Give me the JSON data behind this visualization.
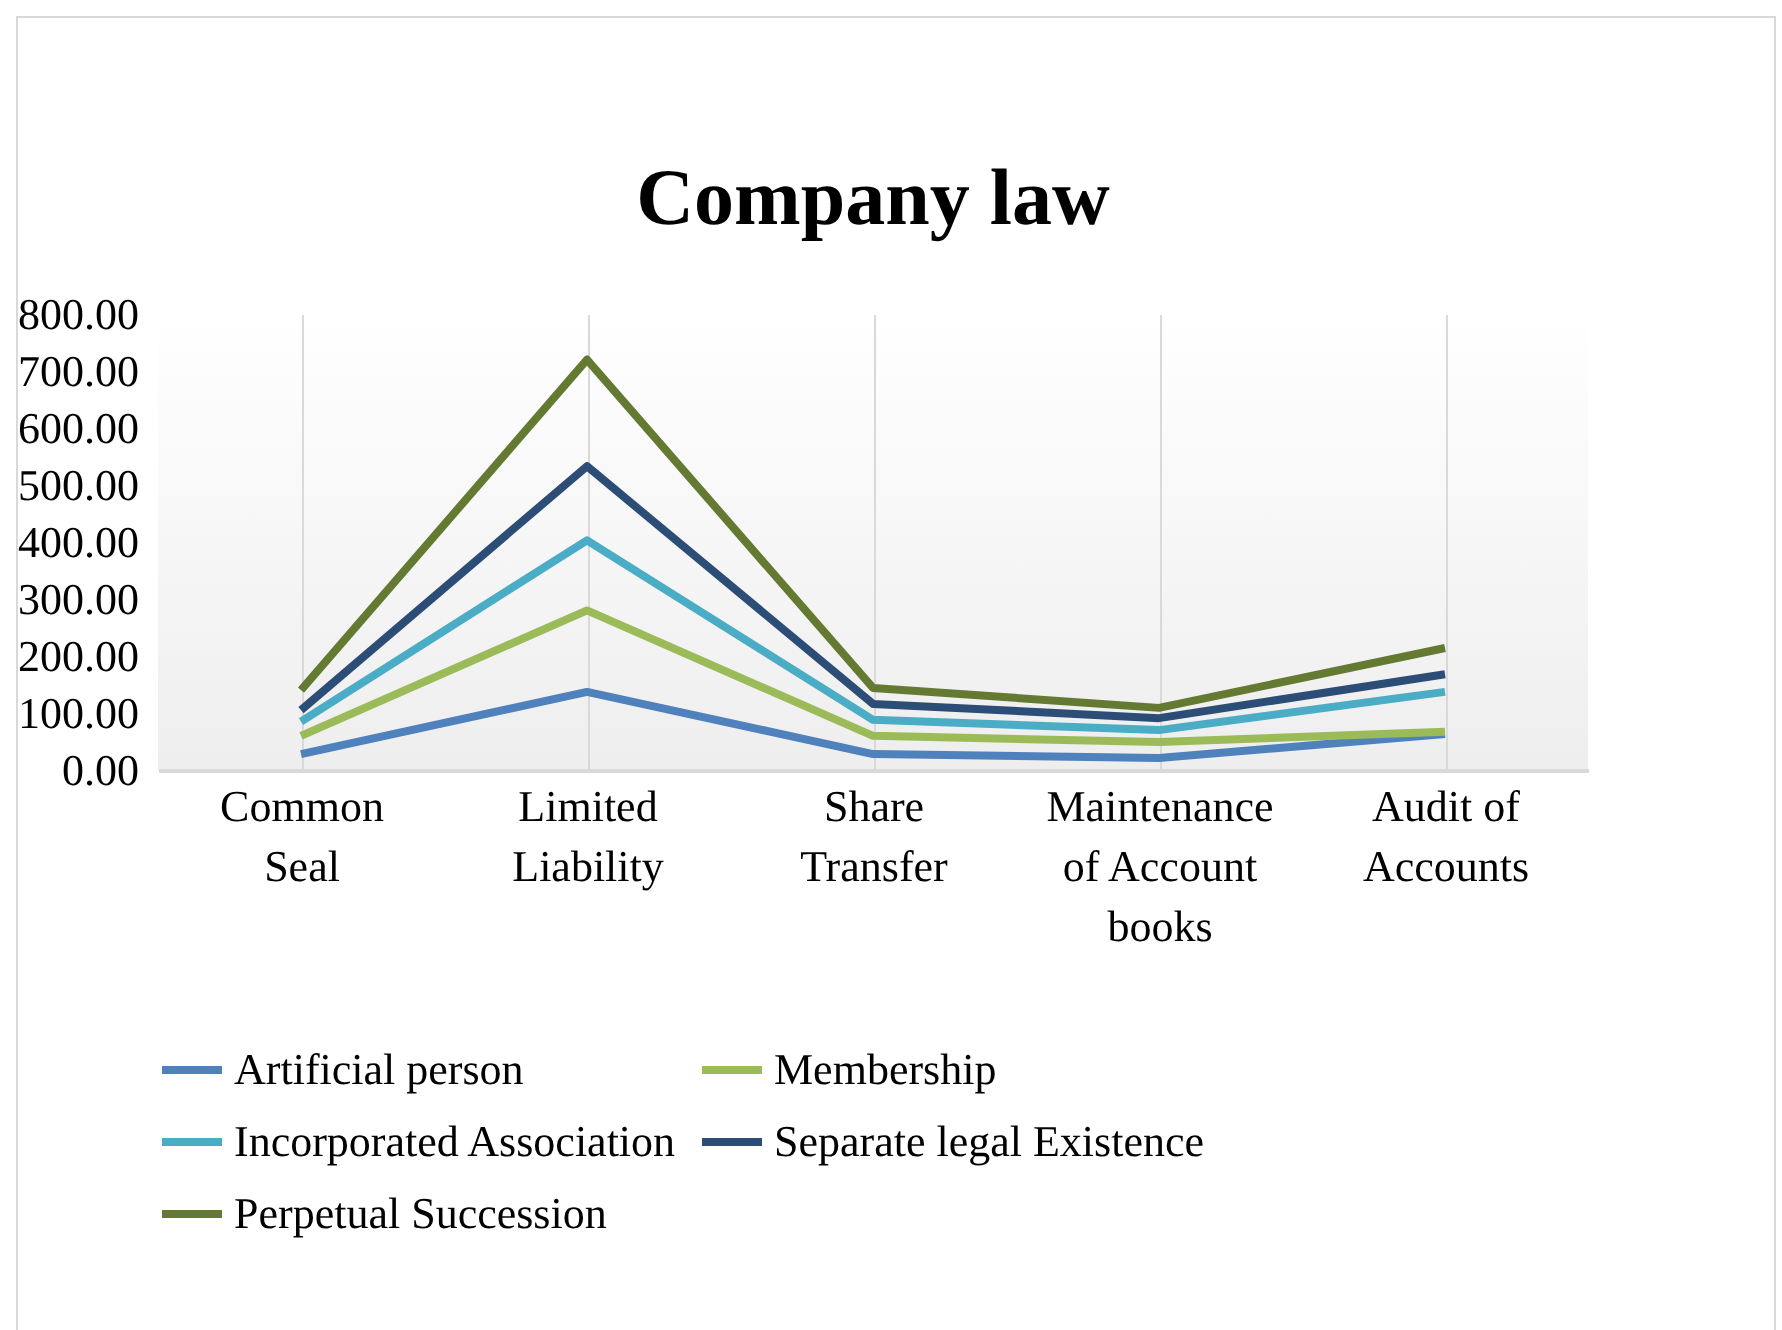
{
  "chart_data": {
    "type": "line",
    "title": "Company law",
    "categories": [
      "Common Seal",
      "Limited Liability",
      "Share Transfer",
      "Maintenance of Account books",
      "Audit of Accounts"
    ],
    "series": [
      {
        "name": "Artificial person",
        "color": "#4f81bd",
        "values": [
          28,
          137,
          28,
          21,
          63
        ]
      },
      {
        "name": "Membership",
        "color": "#9bbb59",
        "values": [
          60,
          280,
          60,
          49,
          67
        ]
      },
      {
        "name": "Incorporated Association",
        "color": "#4bacc6",
        "values": [
          85,
          403,
          88,
          70,
          137
        ]
      },
      {
        "name": "Separate legal Existence",
        "color": "#2c4d75",
        "values": [
          105,
          533,
          116,
          91,
          168
        ]
      },
      {
        "name": "Perpetual Succession",
        "color": "#647a32",
        "values": [
          140,
          720,
          144,
          109,
          214
        ]
      }
    ],
    "ylim": [
      0,
      800
    ],
    "yticks": [
      {
        "value": 0,
        "label": "0.00"
      },
      {
        "value": 100,
        "label": "100.00"
      },
      {
        "value": 200,
        "label": "200.00"
      },
      {
        "value": 300,
        "label": "300.00"
      },
      {
        "value": 400,
        "label": "400.00"
      },
      {
        "value": 500,
        "label": "500.00"
      },
      {
        "value": 600,
        "label": "600.00"
      },
      {
        "value": 700,
        "label": "700.00"
      },
      {
        "value": 800,
        "label": "800.00"
      }
    ],
    "grid": "x",
    "legend": "bottom",
    "marker": "none",
    "line_style": "solid"
  }
}
